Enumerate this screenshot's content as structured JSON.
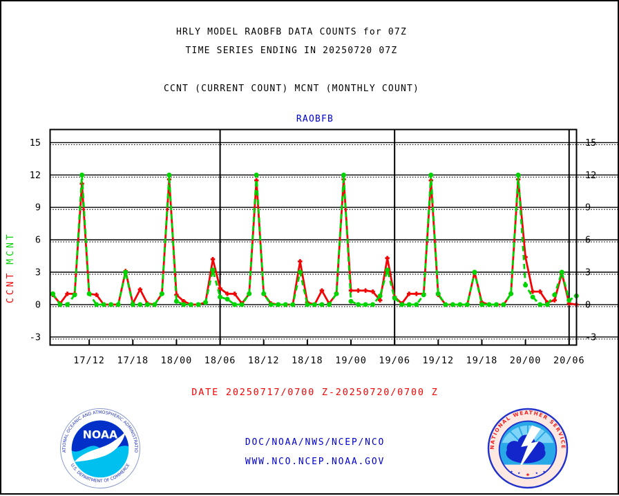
{
  "header": {
    "title_line1": "HRLY MODEL RAOBFB DATA COUNTS for 07Z",
    "title_line2": "TIME SERIES ENDING IN 20250720 07Z",
    "subtitle": "CCNT (CURRENT COUNT) MCNT (MONTHLY COUNT)"
  },
  "captions": {
    "date": "DATE 20250717/0700 Z-20250720/0700 Z"
  },
  "footer": {
    "org_line": "DOC/NOAA/NWS/NCEP/NCO",
    "url_line": "WWW.NCO.NCEP.NOAA.GOV",
    "text_color": "#0000cc"
  },
  "logos": {
    "noaa": {
      "word": "NOAA",
      "ring_top": "NATIONAL OCEANIC AND ATMOSPHERIC ADMINISTRATION",
      "ring_bottom": "U.S. DEPARTMENT OF COMMERCE"
    },
    "nws": {
      "ring": "NATIONAL WEATHER SERVICE"
    }
  },
  "chart_data": {
    "type": "line",
    "title": "RAOBFB",
    "title_color": "#0000cc",
    "x_unit": "hourly counts, 20250717/0700Z through 20250720/0700Z",
    "x_range_hours": [
      "17/07Z",
      "20/07Z"
    ],
    "ylim": [
      -3.75,
      16.25
    ],
    "y_ticks": [
      -3,
      0,
      3,
      6,
      9,
      12,
      15
    ],
    "x_tick_hours": [
      5,
      11,
      17,
      23,
      29,
      35,
      41,
      47,
      53,
      59,
      65,
      71
    ],
    "x_tick_labels": [
      "17/12",
      "17/18",
      "18/00",
      "18/06",
      "18/12",
      "18/18",
      "19/00",
      "19/06",
      "19/12",
      "19/18",
      "20/00",
      "20/06"
    ],
    "day_divider_hours": [
      23,
      47,
      71
    ],
    "grid": "solid line with dotted underline at every labeled level",
    "legend": {
      "CCNT": "red",
      "MCNT": "green"
    },
    "series": [
      {
        "name": "CCNT",
        "color": "#f00404",
        "style": "solid",
        "marker": "plus",
        "values": [
          0.9,
          0.1,
          1,
          1,
          11.2,
          1,
          0.9,
          0,
          0,
          0,
          3.1,
          0.1,
          1.4,
          0.1,
          0,
          1,
          11.6,
          0.9,
          0.3,
          0,
          0,
          0.2,
          4.2,
          1.5,
          1,
          1,
          0.1,
          1,
          11.5,
          1,
          0.1,
          0,
          0,
          0,
          4,
          0.2,
          0,
          1.3,
          0.1,
          1,
          11.6,
          1.3,
          1.3,
          1.3,
          1.2,
          0.4,
          4.3,
          0.7,
          0.1,
          1,
          1,
          1,
          11.5,
          0.9,
          0,
          0,
          0,
          0,
          3,
          0.2,
          0,
          0,
          0,
          1,
          11.6,
          4.4,
          1.2,
          1.2,
          0.2,
          0.4,
          2.9,
          0.1,
          0
        ]
      },
      {
        "name": "MCNT",
        "color": "#00d400",
        "style": "dashed",
        "marker": "circle",
        "values": [
          1,
          0,
          0,
          0.9,
          12,
          1,
          0,
          0,
          0,
          0,
          3,
          0,
          0,
          0,
          0,
          1,
          12,
          0.3,
          0,
          0,
          0,
          0.2,
          3.2,
          0.7,
          0.5,
          0,
          0,
          1,
          12,
          1,
          0,
          0,
          0,
          0,
          3,
          0,
          0,
          0,
          0,
          1,
          12,
          0.3,
          0,
          0,
          0,
          0.8,
          3.2,
          0.6,
          0,
          0,
          0,
          0.9,
          12,
          1,
          0,
          0,
          0,
          0,
          3,
          0,
          0,
          0,
          0,
          1,
          12,
          1.8,
          0.7,
          0,
          0,
          0.9,
          3,
          0.4,
          0.8
        ]
      }
    ]
  }
}
